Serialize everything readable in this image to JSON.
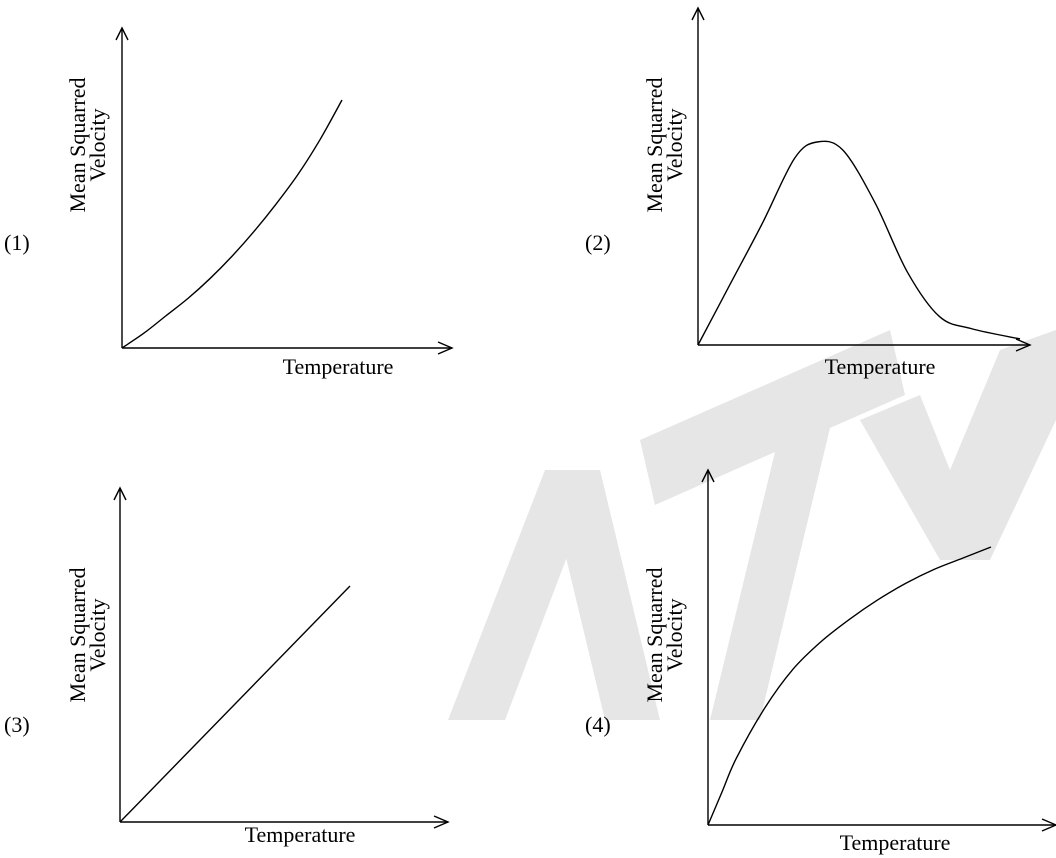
{
  "chart_data": [
    {
      "type": "line",
      "option_label": "(1)",
      "xlabel": "Temperature",
      "ylabel": [
        "Mean Squarred",
        "Velocity"
      ],
      "shape": "convex-increasing",
      "x": [
        0,
        0.1,
        0.2,
        0.3,
        0.4,
        0.5,
        0.6,
        0.7,
        0.8,
        0.9,
        1.0
      ],
      "y": [
        0,
        0.06,
        0.13,
        0.2,
        0.28,
        0.37,
        0.47,
        0.58,
        0.7,
        0.84,
        1.0
      ]
    },
    {
      "type": "line",
      "option_label": "(2)",
      "xlabel": "Temperature",
      "ylabel": [
        "Mean Squarred",
        "Velocity"
      ],
      "shape": "peak",
      "x": [
        0,
        0.1,
        0.2,
        0.3,
        0.37,
        0.45,
        0.55,
        0.65,
        0.75,
        0.85,
        1.0
      ],
      "y": [
        0,
        0.3,
        0.6,
        0.92,
        1.0,
        0.96,
        0.7,
        0.36,
        0.14,
        0.08,
        0.03
      ]
    },
    {
      "type": "line",
      "option_label": "(3)",
      "xlabel": "Temperature",
      "ylabel": [
        "Mean Squarred",
        "Velocity"
      ],
      "shape": "linear",
      "x": [
        0,
        1.0
      ],
      "y": [
        0,
        1.0
      ]
    },
    {
      "type": "line",
      "option_label": "(4)",
      "xlabel": "Temperature",
      "ylabel": [
        "Mean Squarred",
        "Velocity"
      ],
      "shape": "concave-increasing",
      "x": [
        0,
        0.05,
        0.1,
        0.2,
        0.3,
        0.4,
        0.5,
        0.6,
        0.7,
        0.8,
        0.9,
        1.0
      ],
      "y": [
        0,
        0.12,
        0.24,
        0.42,
        0.56,
        0.66,
        0.74,
        0.81,
        0.87,
        0.92,
        0.96,
        1.0
      ]
    }
  ],
  "watermark_icon": "matrix-watermark-logo"
}
